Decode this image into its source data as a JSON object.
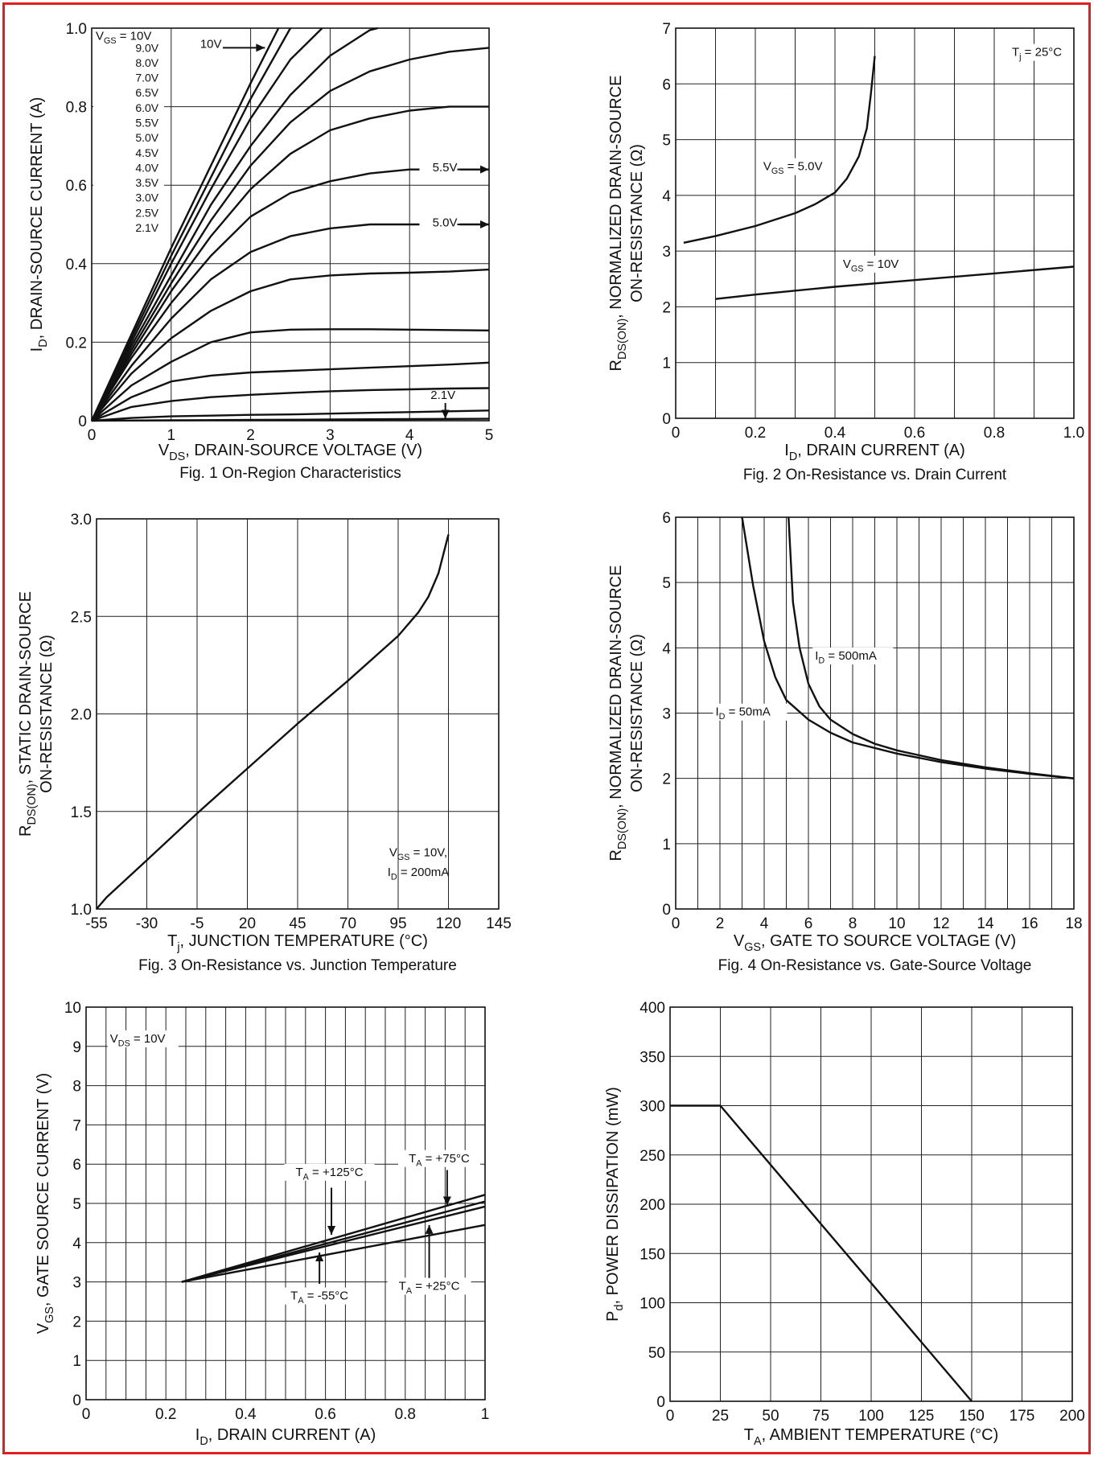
{
  "border_color": "#e02020",
  "figures": [
    {
      "id": "fig1",
      "caption": "Fig. 1  On-Region Characteristics",
      "xlabel": "V_DS, DRAIN-SOURCE VOLTAGE (V)",
      "ylabel": "I_D, DRAIN-SOURCE CURRENT (A)",
      "xticks": [
        "0",
        "1",
        "2",
        "3",
        "4",
        "5"
      ],
      "yticks": [
        "0",
        "0.2",
        "0.4",
        "0.6",
        "0.8",
        "1.0"
      ],
      "legend_title": "V_GS = 10V",
      "legend_items": [
        "9.0V",
        "8.0V",
        "7.0V",
        "6.5V",
        "6.0V",
        "5.5V",
        "5.0V",
        "4.5V",
        "4.0V",
        "3.5V",
        "3.0V",
        "2.5V",
        "2.1V"
      ],
      "annotations": [
        "10V",
        "5.5V",
        "5.0V",
        "2.1V"
      ]
    },
    {
      "id": "fig2",
      "caption": "Fig. 2  On-Resistance vs. Drain Current",
      "xlabel": "I_D, DRAIN CURRENT (A)",
      "ylabel_line1": "R_DS(ON), NORMALIZED DRAIN-SOURCE",
      "ylabel_line2": "ON-RESISTANCE (Ω)",
      "xticks": [
        "0",
        "0.2",
        "0.4",
        "0.6",
        "0.8",
        "1.0"
      ],
      "yticks": [
        "0",
        "1",
        "2",
        "3",
        "4",
        "5",
        "6",
        "7"
      ],
      "annotations": [
        "T_j = 25°C",
        "V_GS = 5.0V",
        "V_GS = 10V"
      ]
    },
    {
      "id": "fig3",
      "caption": "Fig. 3  On-Resistance vs. Junction Temperature",
      "xlabel": "T_j, JUNCTION TEMPERATURE (°C)",
      "ylabel_line1": "R_DS(ON), STATIC DRAIN-SOURCE",
      "ylabel_line2": "ON-RESISTANCE (Ω)",
      "xticks": [
        "-55",
        "-30",
        "-5",
        "20",
        "45",
        "70",
        "95",
        "120",
        "145"
      ],
      "yticks": [
        "1.0",
        "1.5",
        "2.0",
        "2.5",
        "3.0"
      ],
      "annotations": [
        "V_GS = 10V,",
        "I_D = 200mA"
      ]
    },
    {
      "id": "fig4",
      "caption": "Fig. 4  On-Resistance vs. Gate-Source Voltage",
      "xlabel": "V_GS, GATE TO SOURCE VOLTAGE (V)",
      "ylabel_line1": "R_DS(ON), NORMALIZED DRAIN-SOURCE",
      "ylabel_line2": "ON-RESISTANCE (Ω)",
      "xticks": [
        "0",
        "2",
        "4",
        "6",
        "8",
        "10",
        "12",
        "14",
        "16",
        "18"
      ],
      "yticks": [
        "0",
        "1",
        "2",
        "3",
        "4",
        "5",
        "6"
      ],
      "annotations": [
        "I_D = 500mA",
        "I_D = 50mA"
      ]
    },
    {
      "id": "fig5",
      "caption": "",
      "xlabel": "I_D, DRAIN CURRENT (A)",
      "ylabel": "V_GS, GATE SOURCE CURRENT (V)",
      "xticks": [
        "0",
        "0.2",
        "0.4",
        "0.6",
        "0.8",
        "1"
      ],
      "yticks": [
        "0",
        "1",
        "2",
        "3",
        "4",
        "5",
        "6",
        "7",
        "8",
        "9",
        "10"
      ],
      "annotations": [
        "V_DS = 10V",
        "T_A = +125°C",
        "T_A = +75°C",
        "T_A = -55°C",
        "T_A = +25°C"
      ]
    },
    {
      "id": "fig6",
      "caption": "",
      "xlabel": "T_A, AMBIENT TEMPERATURE (°C)",
      "ylabel": "P_d, POWER DISSIPATION (mW)",
      "xticks": [
        "0",
        "25",
        "50",
        "75",
        "100",
        "125",
        "150",
        "175",
        "200"
      ],
      "yticks": [
        "0",
        "50",
        "100",
        "150",
        "200",
        "250",
        "300",
        "350",
        "400"
      ],
      "annotations": []
    }
  ],
  "chart_data": [
    {
      "type": "line",
      "title": "Fig. 1  On-Region Characteristics",
      "xlabel": "V_DS, DRAIN-SOURCE VOLTAGE (V)",
      "ylabel": "I_D, DRAIN-SOURCE CURRENT (A)",
      "xlim": [
        0,
        5
      ],
      "ylim": [
        0,
        1.0
      ],
      "grid": true,
      "series": [
        {
          "name": "10V",
          "x": [
            0,
            0.5,
            1.0,
            1.5,
            2.0,
            2.35
          ],
          "y": [
            0,
            0.22,
            0.44,
            0.65,
            0.86,
            1.0
          ]
        },
        {
          "name": "9.0V",
          "x": [
            0,
            0.5,
            1.0,
            1.5,
            2.0,
            2.5
          ],
          "y": [
            0,
            0.21,
            0.42,
            0.62,
            0.82,
            1.0
          ]
        },
        {
          "name": "8.0V",
          "x": [
            0,
            0.5,
            1.0,
            1.5,
            2.0,
            2.5,
            2.9
          ],
          "y": [
            0,
            0.2,
            0.4,
            0.59,
            0.77,
            0.92,
            1.0
          ]
        },
        {
          "name": "7.0V",
          "x": [
            0,
            0.5,
            1.0,
            1.5,
            2.0,
            2.5,
            3.0,
            3.5,
            3.6
          ],
          "y": [
            0,
            0.19,
            0.37,
            0.55,
            0.7,
            0.83,
            0.93,
            0.995,
            1.0
          ]
        },
        {
          "name": "6.5V",
          "x": [
            0,
            0.5,
            1.0,
            1.5,
            2.0,
            2.5,
            3.0,
            3.5,
            4.0,
            4.5,
            5.0
          ],
          "y": [
            0,
            0.18,
            0.35,
            0.51,
            0.65,
            0.76,
            0.84,
            0.89,
            0.92,
            0.94,
            0.95
          ]
        },
        {
          "name": "6.0V",
          "x": [
            0,
            0.5,
            1.0,
            1.5,
            2.0,
            2.5,
            3.0,
            3.5,
            4.0,
            4.5,
            5.0
          ],
          "y": [
            0,
            0.17,
            0.33,
            0.47,
            0.59,
            0.68,
            0.74,
            0.77,
            0.79,
            0.8,
            0.8
          ]
        },
        {
          "name": "5.5V",
          "x": [
            0,
            0.5,
            1.0,
            1.5,
            2.0,
            2.5,
            3.0,
            3.5,
            4.0,
            4.5,
            5.0
          ],
          "y": [
            0,
            0.16,
            0.3,
            0.42,
            0.52,
            0.58,
            0.61,
            0.63,
            0.64,
            0.64,
            0.64
          ]
        },
        {
          "name": "5.0V",
          "x": [
            0,
            0.5,
            1.0,
            1.5,
            2.0,
            2.5,
            3.0,
            3.5,
            4.0,
            4.5,
            5.0
          ],
          "y": [
            0,
            0.14,
            0.26,
            0.36,
            0.43,
            0.47,
            0.49,
            0.5,
            0.5,
            0.5,
            0.5
          ]
        },
        {
          "name": "4.5V",
          "x": [
            0,
            0.5,
            1.0,
            1.5,
            2.0,
            2.5,
            3.0,
            3.5,
            4.0,
            4.5,
            5.0
          ],
          "y": [
            0,
            0.12,
            0.21,
            0.28,
            0.33,
            0.36,
            0.37,
            0.375,
            0.377,
            0.38,
            0.385
          ]
        },
        {
          "name": "4.0V",
          "x": [
            0,
            0.5,
            1.0,
            1.5,
            2.0,
            2.5,
            3.0,
            3.5,
            4.0,
            4.5,
            5.0
          ],
          "y": [
            0,
            0.09,
            0.15,
            0.2,
            0.225,
            0.232,
            0.233,
            0.233,
            0.232,
            0.231,
            0.23
          ]
        },
        {
          "name": "3.5V",
          "x": [
            0,
            0.5,
            1.0,
            1.5,
            2.0,
            2.5,
            3.0,
            3.5,
            4.0,
            4.5,
            5.0
          ],
          "y": [
            0,
            0.06,
            0.1,
            0.115,
            0.123,
            0.127,
            0.131,
            0.135,
            0.139,
            0.143,
            0.148
          ]
        },
        {
          "name": "3.0V",
          "x": [
            0,
            0.5,
            1.0,
            1.5,
            2.0,
            2.5,
            3.0,
            3.5,
            4.0,
            4.5,
            5.0
          ],
          "y": [
            0,
            0.035,
            0.05,
            0.06,
            0.066,
            0.071,
            0.075,
            0.078,
            0.08,
            0.082,
            0.083
          ]
        },
        {
          "name": "2.5V",
          "x": [
            0,
            0.5,
            1.0,
            1.5,
            2.0,
            2.5,
            3.0,
            3.5,
            4.0,
            4.5,
            5.0
          ],
          "y": [
            0,
            0.007,
            0.011,
            0.013,
            0.015,
            0.016,
            0.018,
            0.02,
            0.022,
            0.024,
            0.026
          ]
        },
        {
          "name": "2.1V",
          "x": [
            0,
            1.0,
            2.0,
            3.0,
            4.0,
            5.0
          ],
          "y": [
            0,
            0.001,
            0.002,
            0.003,
            0.004,
            0.005
          ]
        }
      ]
    },
    {
      "type": "line",
      "title": "Fig. 2  On-Resistance vs. Drain Current",
      "xlabel": "I_D, DRAIN CURRENT (A)",
      "ylabel": "R_DS(ON), NORMALIZED DRAIN-SOURCE ON-RESISTANCE (Ω)",
      "xlim": [
        0,
        1.0
      ],
      "ylim": [
        0,
        7
      ],
      "grid": true,
      "series": [
        {
          "name": "V_GS = 5.0V",
          "x": [
            0.02,
            0.1,
            0.2,
            0.3,
            0.35,
            0.4,
            0.43,
            0.46,
            0.48,
            0.49,
            0.5
          ],
          "y": [
            3.15,
            3.27,
            3.45,
            3.68,
            3.84,
            4.05,
            4.3,
            4.7,
            5.2,
            5.8,
            6.5
          ]
        },
        {
          "name": "V_GS = 10V",
          "x": [
            0.1,
            0.2,
            0.4,
            0.6,
            0.8,
            1.0
          ],
          "y": [
            2.14,
            2.22,
            2.36,
            2.48,
            2.6,
            2.72
          ]
        }
      ]
    },
    {
      "type": "line",
      "title": "Fig. 3  On-Resistance vs. Junction Temperature",
      "xlabel": "T_j, JUNCTION TEMPERATURE (°C)",
      "ylabel": "R_DS(ON), STATIC DRAIN-SOURCE ON-RESISTANCE (Ω)",
      "xlim": [
        -55,
        145
      ],
      "ylim": [
        1.0,
        3.0
      ],
      "grid": true,
      "series": [
        {
          "name": "V_GS = 10V, I_D = 200mA",
          "x": [
            -55,
            -50,
            -30,
            -5,
            20,
            45,
            70,
            95,
            105,
            110,
            115,
            120
          ],
          "y": [
            1.0,
            1.06,
            1.25,
            1.49,
            1.72,
            1.95,
            2.17,
            2.4,
            2.52,
            2.6,
            2.72,
            2.92
          ]
        }
      ]
    },
    {
      "type": "line",
      "title": "Fig. 4  On-Resistance vs. Gate-Source Voltage",
      "xlabel": "V_GS, GATE TO SOURCE VOLTAGE (V)",
      "ylabel": "R_DS(ON), NORMALIZED DRAIN-SOURCE ON-RESISTANCE (Ω)",
      "xlim": [
        0,
        18
      ],
      "ylim": [
        0,
        6
      ],
      "grid": true,
      "series": [
        {
          "name": "I_D = 50mA",
          "x": [
            3.0,
            3.5,
            4.0,
            4.5,
            5.0,
            6.0,
            7.0,
            8.0,
            10.0,
            12.0,
            14.0,
            16.0,
            18.0
          ],
          "y": [
            6.0,
            4.95,
            4.1,
            3.55,
            3.2,
            2.9,
            2.7,
            2.55,
            2.38,
            2.25,
            2.15,
            2.07,
            2.0
          ]
        },
        {
          "name": "I_D = 500mA",
          "x": [
            5.1,
            5.3,
            5.6,
            6.0,
            6.5,
            7.0,
            8.0,
            9.0,
            10.0,
            12.0,
            14.0,
            16.0,
            18.0
          ],
          "y": [
            6.0,
            4.7,
            4.0,
            3.45,
            3.1,
            2.9,
            2.68,
            2.53,
            2.43,
            2.28,
            2.17,
            2.08,
            2.0
          ]
        }
      ]
    },
    {
      "type": "line",
      "xlabel": "I_D, DRAIN CURRENT (A)",
      "ylabel": "V_GS, GATE SOURCE CURRENT (V)",
      "xlim": [
        0,
        1
      ],
      "ylim": [
        0,
        10
      ],
      "grid": true,
      "series": [
        {
          "name": "T_A = -55°C",
          "x": [
            0.24,
            1.0
          ],
          "y": [
            3.0,
            5.22
          ]
        },
        {
          "name": "T_A = +25°C",
          "x": [
            0.24,
            1.0
          ],
          "y": [
            3.0,
            5.05
          ]
        },
        {
          "name": "T_A = +75°C",
          "x": [
            0.24,
            1.0
          ],
          "y": [
            3.0,
            4.92
          ]
        },
        {
          "name": "T_A = +125°C",
          "x": [
            0.24,
            1.0
          ],
          "y": [
            3.0,
            4.45
          ]
        }
      ]
    },
    {
      "type": "line",
      "xlabel": "T_A, AMBIENT TEMPERATURE (°C)",
      "ylabel": "P_d, POWER DISSIPATION (mW)",
      "xlim": [
        0,
        200
      ],
      "ylim": [
        0,
        400
      ],
      "grid": true,
      "series": [
        {
          "x": [
            0,
            25,
            150
          ],
          "y": [
            300,
            300,
            0
          ]
        }
      ]
    }
  ]
}
